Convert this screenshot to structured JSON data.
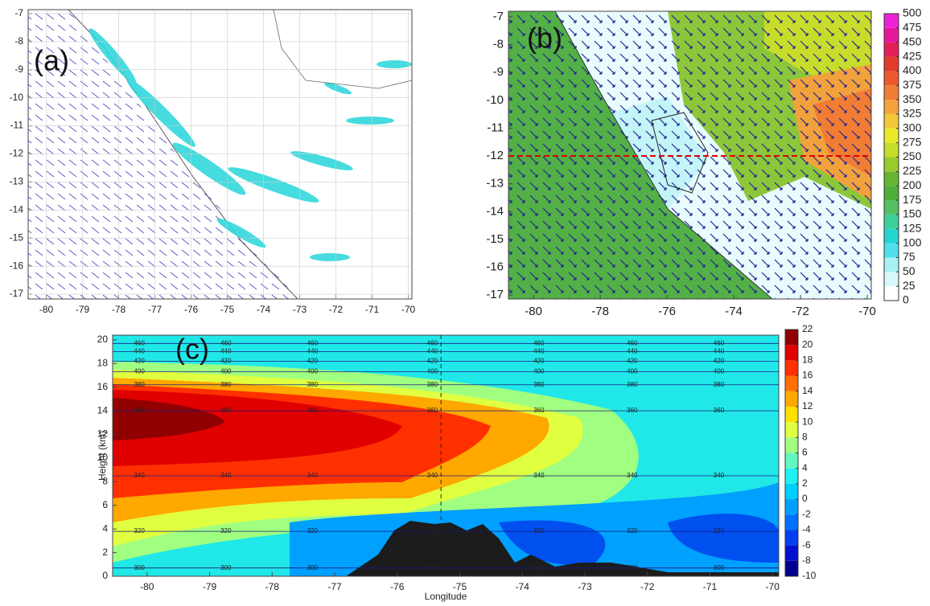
{
  "chart_data": [
    {
      "type": "map",
      "panel_label": "(a)",
      "xlim": [
        -80.5,
        -69.9
      ],
      "ylim": [
        -17.17,
        -6.86
      ],
      "xticks": [
        -80,
        -79,
        -78,
        -77,
        -76,
        -75,
        -74,
        -73,
        -72,
        -71,
        -70
      ],
      "yticks": [
        -7,
        -8,
        -9,
        -10,
        -11,
        -12,
        -13,
        -14,
        -15,
        -16,
        -17
      ]
    },
    {
      "type": "map",
      "panel_label": "(b)",
      "xlim": [
        -80.75,
        -69.88
      ],
      "ylim": [
        -17.14,
        -6.8
      ],
      "xticks": [
        -80,
        -78,
        -76,
        -74,
        -72,
        -70
      ],
      "yticks": [
        -7,
        -8,
        -9,
        -10,
        -11,
        -12,
        -13,
        -14,
        -15,
        -16,
        -17
      ],
      "section_latitude": -12,
      "section_color": "#e00000",
      "colorbar": {
        "lim": [
          0,
          500
        ],
        "ticks": [
          0,
          25,
          50,
          75,
          100,
          125,
          150,
          175,
          200,
          225,
          250,
          275,
          300,
          325,
          350,
          375,
          400,
          425,
          450,
          475,
          500
        ],
        "colors": [
          "#ffffff",
          "#d8f8fb",
          "#a8f0f5",
          "#4fe0ec",
          "#25d6d0",
          "#3fcf9a",
          "#52c063",
          "#4fae3a",
          "#66b430",
          "#9acb2c",
          "#c6dc2a",
          "#e9e92a",
          "#f2c83a",
          "#f3a33c",
          "#f07d33",
          "#ea5a2c",
          "#e23a2d",
          "#e22058",
          "#e51899",
          "#ee22d8"
        ]
      }
    },
    {
      "type": "contour",
      "panel_label": "(c)",
      "xlabel": "Longitude",
      "ylabel": "Height (km)",
      "xlim": [
        -80.55,
        -69.9
      ],
      "ylim": [
        0,
        20.4
      ],
      "xticks": [
        -80,
        -79,
        -78,
        -77,
        -76,
        -75,
        -74,
        -73,
        -72,
        -71,
        -70
      ],
      "yticks": [
        0,
        2,
        4,
        6,
        8,
        10,
        12,
        14,
        16,
        18,
        20
      ],
      "marker_longitude": -75.3,
      "isentropes": [
        300,
        320,
        340,
        360,
        380,
        400,
        420,
        440,
        460
      ],
      "isentrope_heights": [
        0.7,
        3.8,
        8.5,
        14,
        16.2,
        17.3,
        18.2,
        19,
        19.7
      ],
      "colorbar": {
        "lim": [
          -10,
          22
        ],
        "ticks": [
          -10,
          -8,
          -6,
          -4,
          -2,
          0,
          2,
          4,
          6,
          8,
          10,
          12,
          14,
          16,
          18,
          20,
          22
        ],
        "colors": [
          "#00008f",
          "#0010d0",
          "#0040f0",
          "#0070ff",
          "#00a0ff",
          "#00d0ff",
          "#20f0f0",
          "#60f8c0",
          "#a0ff80",
          "#e0ff40",
          "#ffe000",
          "#ffa800",
          "#ff7000",
          "#ff3000",
          "#e00000",
          "#900000"
        ]
      }
    }
  ]
}
